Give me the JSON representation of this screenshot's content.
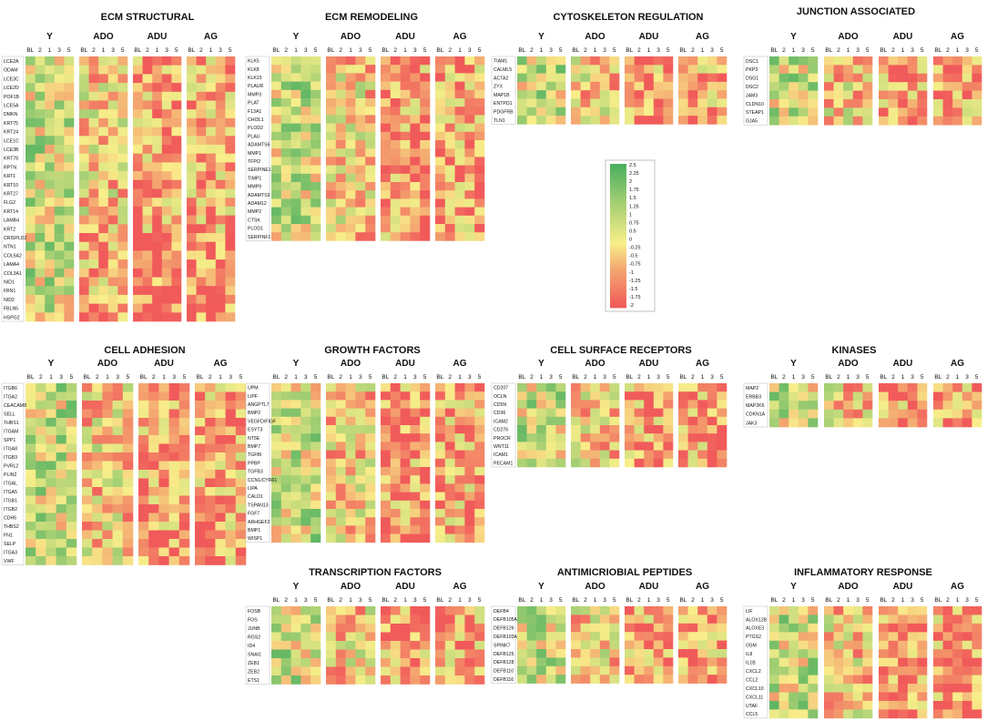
{
  "groups": [
    "Y",
    "ADO",
    "ADU",
    "AG"
  ],
  "timepoints": [
    "BL",
    "2",
    "1",
    "3",
    "5"
  ],
  "legend": {
    "ticks": [
      "2.5",
      "2.25",
      "2",
      "1.75",
      "1.5",
      "1.25",
      "1",
      "0.75",
      "0.5",
      "0",
      "-0.25",
      "-0.5",
      "-0.75",
      "-1",
      "-1.25",
      "-1.5",
      "-1.75",
      "-2"
    ],
    "min": -2,
    "max": 2.5
  },
  "colors": {
    "high": "#4caf5f",
    "mid": "#f8ee8a",
    "low": "#f15a5a"
  },
  "chart_data": [
    {
      "type": "heatmap",
      "title": "ECM STRUCTURAL",
      "panel": 0,
      "genes": [
        "LCE2A",
        "ODAM",
        "LCE3C",
        "LCE2D",
        "POF1B",
        "LCE5A",
        "DMKN",
        "KRT75",
        "KRT24",
        "LCE1C",
        "LCE3B",
        "KRT78",
        "RPTN",
        "KRT1",
        "KRT10",
        "KRT27",
        "FLG2",
        "KRT14",
        "LAMB4",
        "KRT2",
        "CRISPLD2",
        "NTN1",
        "COL5A2",
        "LAMA4",
        "COL3A1",
        "NID1",
        "FBN1",
        "NID2",
        "FBLN5",
        "HSPG2"
      ]
    },
    {
      "type": "heatmap",
      "title": "ECM REMODELING",
      "panel": 1,
      "genes": [
        "KLK5",
        "KLK8",
        "KLK15",
        "PLAUR",
        "MMP3",
        "PLAT",
        "F13A1",
        "CHI3L1",
        "PLOD2",
        "PLAU",
        "ADAMTS6",
        "MMP1",
        "TFPI2",
        "SERPINE1",
        "TIMP1",
        "MMP9",
        "ADAMTS9",
        "ADAM12",
        "MMP2",
        "CTSK",
        "PLOD1",
        "SERPINF1"
      ]
    },
    {
      "type": "heatmap",
      "title": "CYTOSKELETON REGULATION",
      "panel": 2,
      "genes": [
        "TIAM1",
        "CALML5",
        "ACTA2",
        "ZYX",
        "MAP1B",
        "ENTPD1",
        "PDGFRB",
        "TLN1"
      ]
    },
    {
      "type": "heatmap",
      "title": "JUNCTION ASSOCIATED",
      "panel": 3,
      "genes": [
        "DSC1",
        "PKP3",
        "DSG1",
        "DSC2",
        "JAM3",
        "CLDN10",
        "STEAP1",
        "GJA5"
      ]
    },
    {
      "type": "heatmap",
      "title": "CELL ADHESION",
      "panel": 4,
      "genes": [
        "ITGB6",
        "ITGA2",
        "CEACAM8",
        "SELL",
        "THBS1",
        "ITGAM",
        "SPP1",
        "ITGA8",
        "ITGB3",
        "PVRL2",
        "PLIN2",
        "ITGAL",
        "ITGA5",
        "ITGB1",
        "ITGB2",
        "CDH5",
        "THBS2",
        "FN1",
        "SELP",
        "ITGA3",
        "VWF"
      ]
    },
    {
      "type": "heatmap",
      "title": "GROWTH FACTORS",
      "panel": 5,
      "genes": [
        "UPM",
        "LIPF",
        "ANGPTL7",
        "BMP2",
        "VEGFD/FIGF",
        "ESYT3",
        "NT5E",
        "BMP7",
        "TGFBI",
        "PPBP",
        "TGFB3",
        "CCN1/CYR61",
        "LIPA",
        "CALD1",
        "TSPAN13",
        "FGF7",
        "ARHGEF2",
        "BMP1",
        "WISP1"
      ]
    },
    {
      "type": "heatmap",
      "title": "CELL SURFACE RECEPTORS",
      "panel": 6,
      "genes": [
        "CD207",
        "OCLN",
        "CD5N",
        "CD36",
        "ICAM2",
        "CD276",
        "PROCR",
        "WNT11",
        "ICAM1",
        "PECAM1"
      ]
    },
    {
      "type": "heatmap",
      "title": "KINASES",
      "panel": 7,
      "genes": [
        "MAP2",
        "ERBB3",
        "MAP2K6",
        "CDKN1A",
        "JAK3"
      ]
    },
    {
      "type": "heatmap",
      "title": "TRANSCRIPTION FACTORS",
      "panel": 8,
      "genes": [
        "FOSB",
        "FOS",
        "JUNB",
        "RGS2",
        "ID4",
        "SNAI1",
        "ZEB1",
        "ZEB2",
        "ETS1"
      ]
    },
    {
      "type": "heatmap",
      "title": "ANTIMICRIOBIAL PEPTIDES",
      "panel": 9,
      "genes": [
        "DEFB4",
        "DEFB105A",
        "DEFB126",
        "DEFB103A",
        "SPINK7",
        "DEFB125",
        "DEFB128",
        "DEFB110",
        "DEFB116"
      ]
    },
    {
      "type": "heatmap",
      "title": "INFLAMMATORY RESPONSE",
      "panel": 10,
      "genes": [
        "LIF",
        "ALOX12B",
        "ALOXE3",
        "PTGS2",
        "OSM",
        "IL8",
        "IL1B",
        "CXCL2",
        "CCL2",
        "CXCL10",
        "CXCL11",
        "UTAF",
        "CCL5"
      ]
    }
  ]
}
